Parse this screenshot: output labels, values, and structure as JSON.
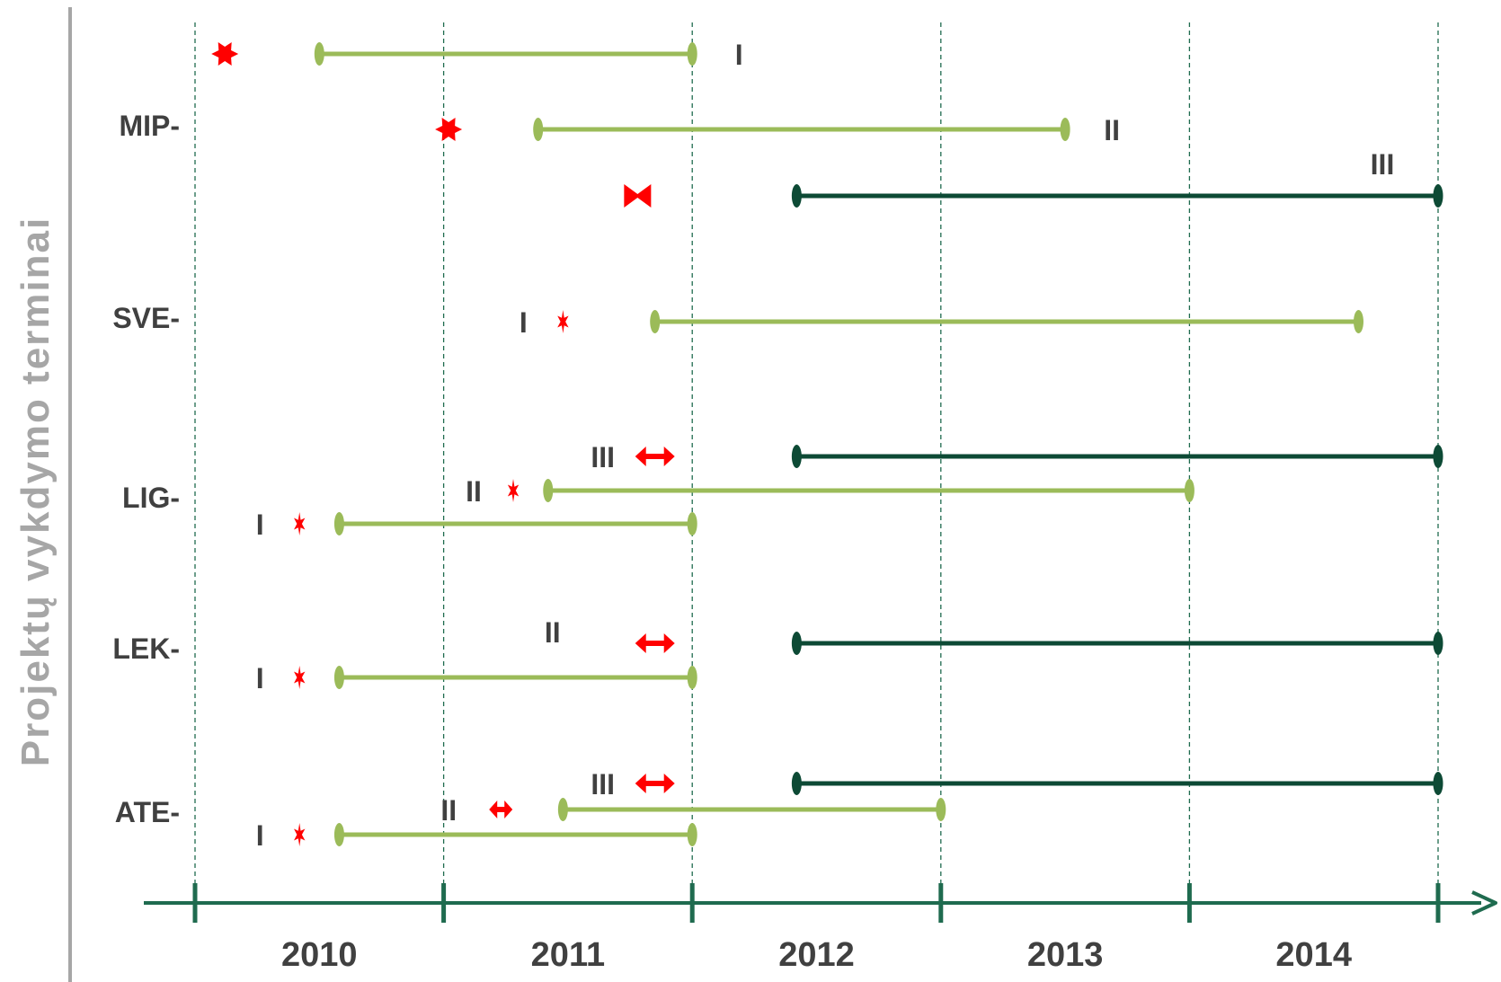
{
  "chart_data": {
    "type": "timeline",
    "title": "",
    "ylabel": "Projektų vykdymo terminai",
    "xlabel": "",
    "x_unit": "year",
    "xlim": [
      2009.75,
      2014.75
    ],
    "x_ticks": [
      2009.75,
      2010.75,
      2011.75,
      2012.75,
      2013.75,
      2014.75
    ],
    "x_tick_labels": [
      "2010",
      "2011",
      "2012",
      "2013",
      "2014"
    ],
    "grid": "vertical dashed lines at each tick",
    "categories": [
      "MIP-",
      "SVE-",
      "LIG-",
      "LEK-",
      "ATE-"
    ],
    "colors": {
      "phase_light": "#9bbb59",
      "phase_dark": "#0d4a35",
      "marker": "#ff0000",
      "axis": "#1f6b4f",
      "grid": "#1f6b4f",
      "label": "#404040",
      "side_title": "#a6a6a6"
    },
    "series": [
      {
        "category": "MIP-",
        "phase": "I",
        "start": 2010.25,
        "end": 2011.75,
        "marker_year": 2009.87,
        "marker": "star",
        "color": "light",
        "label_side": "right"
      },
      {
        "category": "MIP-",
        "phase": "II",
        "start": 2011.13,
        "end": 2013.25,
        "marker_year": 2010.77,
        "marker": "star",
        "color": "light",
        "label_side": "right"
      },
      {
        "category": "MIP-",
        "phase": "III",
        "start": 2012.17,
        "end": 2014.75,
        "marker_year": 2011.53,
        "marker": "bowtie",
        "color": "dark",
        "label_side": "top-right"
      },
      {
        "category": "SVE-",
        "phase": "I",
        "start": 2011.6,
        "end": 2014.43,
        "marker_year": 2011.23,
        "marker": "small-star",
        "color": "light",
        "label_side": "left"
      },
      {
        "category": "LIG-",
        "phase": "III",
        "start": 2012.17,
        "end": 2014.75,
        "marker_year": 2011.6,
        "marker": "double-arrow",
        "color": "dark",
        "label_side": "left"
      },
      {
        "category": "LIG-",
        "phase": "II",
        "start": 2011.17,
        "end": 2013.75,
        "marker_year": 2011.03,
        "marker": "small-star",
        "color": "light",
        "label_side": "left"
      },
      {
        "category": "LIG-",
        "phase": "I",
        "start": 2010.33,
        "end": 2011.75,
        "marker_year": 2010.17,
        "marker": "small-star",
        "color": "light",
        "label_side": "left"
      },
      {
        "category": "LEK-",
        "phase": "II",
        "start": 2012.17,
        "end": 2014.75,
        "marker_year": 2011.6,
        "marker": "double-arrow",
        "color": "dark",
        "label_side": "above-left"
      },
      {
        "category": "LEK-",
        "phase": "I",
        "start": 2010.33,
        "end": 2011.75,
        "marker_year": 2010.17,
        "marker": "small-star",
        "color": "light",
        "label_side": "left"
      },
      {
        "category": "ATE-",
        "phase": "III",
        "start": 2012.17,
        "end": 2014.75,
        "marker_year": 2011.6,
        "marker": "double-arrow",
        "color": "dark",
        "label_side": "left"
      },
      {
        "category": "ATE-",
        "phase": "II",
        "start": 2011.23,
        "end": 2012.75,
        "marker_year": 2010.98,
        "marker": "double-arrow",
        "color": "light",
        "label_side": "left"
      },
      {
        "category": "ATE-",
        "phase": "I",
        "start": 2010.33,
        "end": 2011.75,
        "marker_year": 2010.17,
        "marker": "small-star",
        "color": "light",
        "label_side": "left"
      }
    ]
  }
}
